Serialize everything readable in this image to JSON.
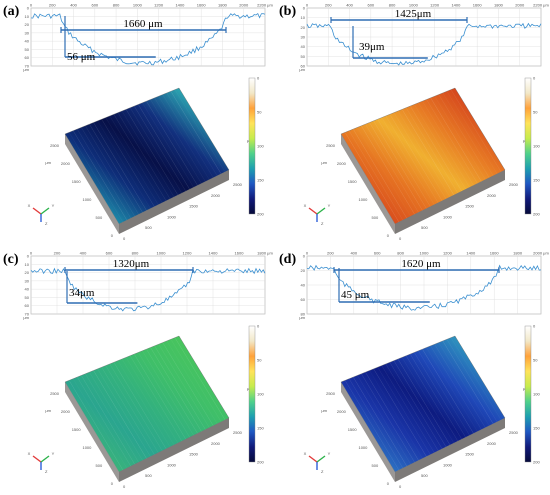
{
  "figure": {
    "panels": [
      {
        "id": "a",
        "label": "(a)",
        "width_label": "1660 μm",
        "depth_label": "56 μm",
        "x_ticks": [
          "0",
          "200",
          "400",
          "600",
          "800",
          "1000",
          "1200",
          "1400",
          "1600",
          "1800",
          "2000",
          "2200 μm"
        ],
        "y_ticks": [
          "0",
          "10",
          "20",
          "30",
          "40",
          "50",
          "60",
          "70"
        ],
        "y_unit": "μm",
        "colorbar_ticks": [
          "0",
          "50",
          "100",
          "150",
          "200"
        ],
        "colormap": [
          "#ffffff",
          "#f2e8c8",
          "#ffa23a",
          "#ffe35a",
          "#c6ec4d",
          "#4fd18b",
          "#1d9fb0",
          "#1f57c2",
          "#111a7a",
          "#060a3a"
        ],
        "surface_color": "teal-blue"
      },
      {
        "id": "b",
        "label": "(b)",
        "width_label": "1425μm",
        "depth_label": "39μm",
        "x_ticks": [
          "0",
          "200",
          "400",
          "600",
          "800",
          "1000",
          "1200",
          "1400",
          "1600",
          "1800",
          "2000",
          "2200 μm"
        ],
        "y_ticks": [
          "0",
          "10",
          "20",
          "30",
          "40",
          "50",
          "60"
        ],
        "y_unit": "μm",
        "colorbar_ticks": [
          "0",
          "50",
          "100",
          "150",
          "200"
        ],
        "colormap": [
          "#ffffff",
          "#f2e8c8",
          "#ffa23a",
          "#ffe35a",
          "#c6ec4d",
          "#4fd18b",
          "#1d9fb0",
          "#1f57c2",
          "#111a7a",
          "#060a3a"
        ],
        "surface_color": "orange-red"
      },
      {
        "id": "c",
        "label": "(c)",
        "width_label": "1320μm",
        "depth_label": "34μm",
        "x_ticks": [
          "0",
          "200",
          "400",
          "600",
          "800",
          "1000",
          "1200",
          "1400",
          "1600",
          "1800 μm"
        ],
        "y_ticks": [
          "0",
          "10",
          "20",
          "30",
          "40",
          "50",
          "60",
          "70"
        ],
        "y_unit": "μm",
        "colorbar_ticks": [
          "0",
          "50",
          "100",
          "150",
          "200"
        ],
        "colormap": [
          "#ffffff",
          "#f2e8c8",
          "#ffa23a",
          "#ffe35a",
          "#c6ec4d",
          "#4fd18b",
          "#1d9fb0",
          "#1f57c2",
          "#111a7a",
          "#060a3a"
        ],
        "surface_color": "green"
      },
      {
        "id": "d",
        "label": "(d)",
        "width_label": "1620 μm",
        "depth_label": "45 μm",
        "x_ticks": [
          "0",
          "200",
          "400",
          "600",
          "800",
          "1000",
          "1200",
          "1400",
          "1600",
          "1800",
          "2000 μm"
        ],
        "y_ticks": [
          "0",
          "20",
          "40",
          "60",
          "80"
        ],
        "y_unit": "μm",
        "colorbar_ticks": [
          "0",
          "50",
          "100",
          "150",
          "200"
        ],
        "colormap": [
          "#ffffff",
          "#f2e8c8",
          "#ffa23a",
          "#ffe35a",
          "#c6ec4d",
          "#4fd18b",
          "#1d9fb0",
          "#1f57c2",
          "#111a7a",
          "#060a3a"
        ],
        "surface_color": "blue"
      }
    ],
    "surface_axis_ticks": [
      "0",
      "500",
      "1000",
      "1500",
      "2000",
      "2500"
    ],
    "surface_axis_unit": "μm",
    "triad_labels": [
      "X",
      "Y",
      "Z"
    ]
  }
}
